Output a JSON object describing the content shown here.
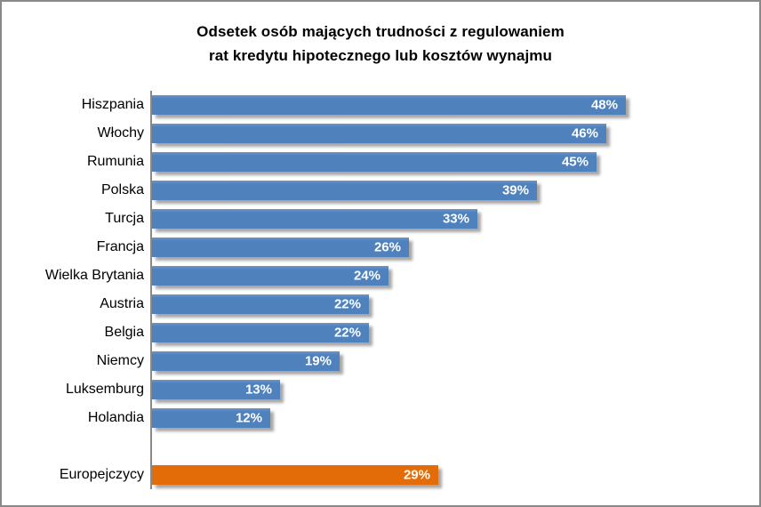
{
  "window": {
    "background": "#FFFFFF",
    "border_color": "#898989"
  },
  "chart_data": {
    "type": "bar",
    "orientation": "horizontal",
    "title": "Odsetek osób mających trudności z regulowaniem rat kredytu hipotecznego lub kosztów wynajmu",
    "title_lines": [
      "Odsetek osób mających trudności z regulowaniem",
      "rat kredytu hipotecznego lub kosztów wynajmu"
    ],
    "categories": [
      "Hiszpania",
      "Włochy",
      "Rumunia",
      "Polska",
      "Turcja",
      "Francja",
      "Wielka Brytania",
      "Austria",
      "Belgia",
      "Niemcy",
      "Luksemburg",
      "Holandia",
      "Europejczycy"
    ],
    "values": [
      48,
      46,
      45,
      39,
      33,
      26,
      24,
      22,
      22,
      19,
      13,
      12,
      29
    ],
    "value_labels": [
      "48%",
      "46%",
      "45%",
      "39%",
      "33%",
      "26%",
      "24%",
      "22%",
      "22%",
      "19%",
      "13%",
      "12%",
      "29%"
    ],
    "highlight_index": 12,
    "gap_before_highlight": true,
    "xlim": [
      0,
      60
    ],
    "grid": false,
    "legend": false,
    "value_labels_position": "inside-end",
    "colors": {
      "bar": "#4F81BD",
      "highlight_bar": "#E36C09",
      "value_text": "#FFFFFF",
      "category_text": "#000000",
      "title_text": "#000000",
      "axis_line": "#898989"
    }
  }
}
